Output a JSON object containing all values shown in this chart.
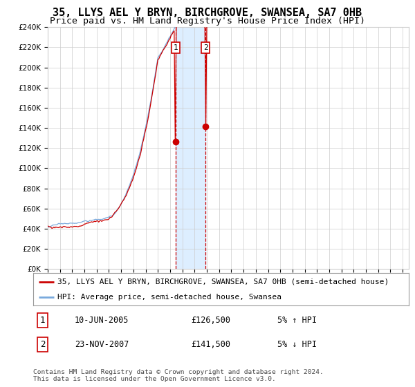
{
  "title": "35, LLYS AEL Y BRYN, BIRCHGROVE, SWANSEA, SA7 0HB",
  "subtitle": "Price paid vs. HM Land Registry's House Price Index (HPI)",
  "ylim": [
    0,
    240000
  ],
  "x_start_year": 1995,
  "x_end_year": 2024,
  "legend_property": "35, LLYS AEL Y BRYN, BIRCHGROVE, SWANSEA, SA7 0HB (semi-detached house)",
  "legend_hpi": "HPI: Average price, semi-detached house, Swansea",
  "sale1_date": "10-JUN-2005",
  "sale1_price": 126500,
  "sale1_label": "1",
  "sale1_hpi_note": "5% ↑ HPI",
  "sale2_date": "23-NOV-2007",
  "sale2_price": 141500,
  "sale2_label": "2",
  "sale2_hpi_note": "5% ↓ HPI",
  "sale1_year": 2005.44,
  "sale2_year": 2007.9,
  "line_color_property": "#cc0000",
  "line_color_hpi": "#7aaadd",
  "sale_dot_color": "#cc0000",
  "vline_color": "#cc0000",
  "shade_color": "#ddeeff",
  "grid_color": "#cccccc",
  "bg_color": "#ffffff",
  "footer_text": "Contains HM Land Registry data © Crown copyright and database right 2024.\nThis data is licensed under the Open Government Licence v3.0.",
  "title_fontsize": 11,
  "subtitle_fontsize": 9.5,
  "axis_fontsize": 7.5,
  "legend_fontsize": 8,
  "annotation_fontsize": 8.5
}
